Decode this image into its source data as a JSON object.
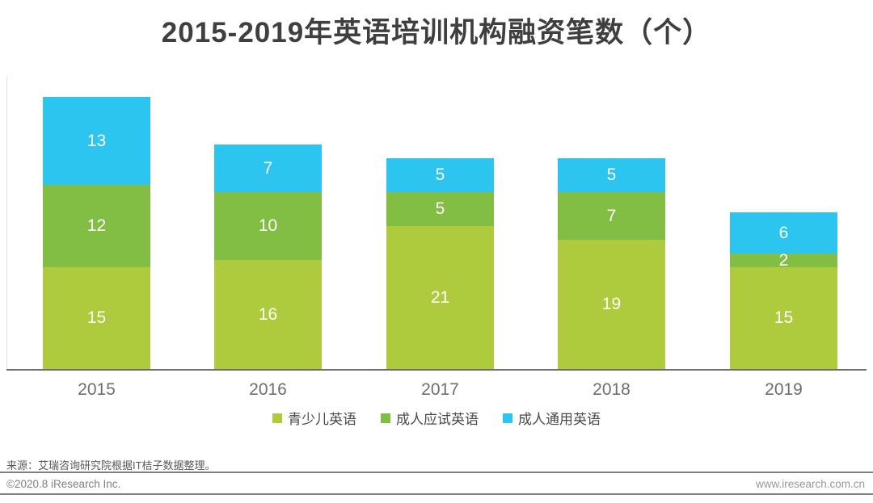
{
  "title": "2015-2019年英语培训机构融资笔数（个）",
  "chart_data": {
    "type": "bar",
    "stacked": true,
    "title": "2015-2019年英语培训机构融资笔数（个）",
    "categories": [
      "2015",
      "2016",
      "2017",
      "2018",
      "2019"
    ],
    "series": [
      {
        "name": "青少儿英语",
        "color": "#adcb3c",
        "values": [
          15,
          16,
          21,
          19,
          15
        ]
      },
      {
        "name": "成人应试英语",
        "color": "#82bd44",
        "values": [
          12,
          10,
          5,
          7,
          2
        ]
      },
      {
        "name": "成人通用英语",
        "color": "#2bc5ef",
        "values": [
          13,
          7,
          5,
          5,
          6
        ]
      }
    ],
    "totals": [
      40,
      33,
      31,
      31,
      23
    ],
    "xlabel": "",
    "ylabel": "",
    "ylim": [
      0,
      40
    ],
    "grid": false,
    "legend_position": "bottom",
    "value_label_color": "#ffffff"
  },
  "footer": {
    "source": "来源：艾瑞咨询研究院根据IT桔子数据整理。",
    "copyright": "©2020.8 iResearch Inc.",
    "website": "www.iresearch.com.cn"
  }
}
